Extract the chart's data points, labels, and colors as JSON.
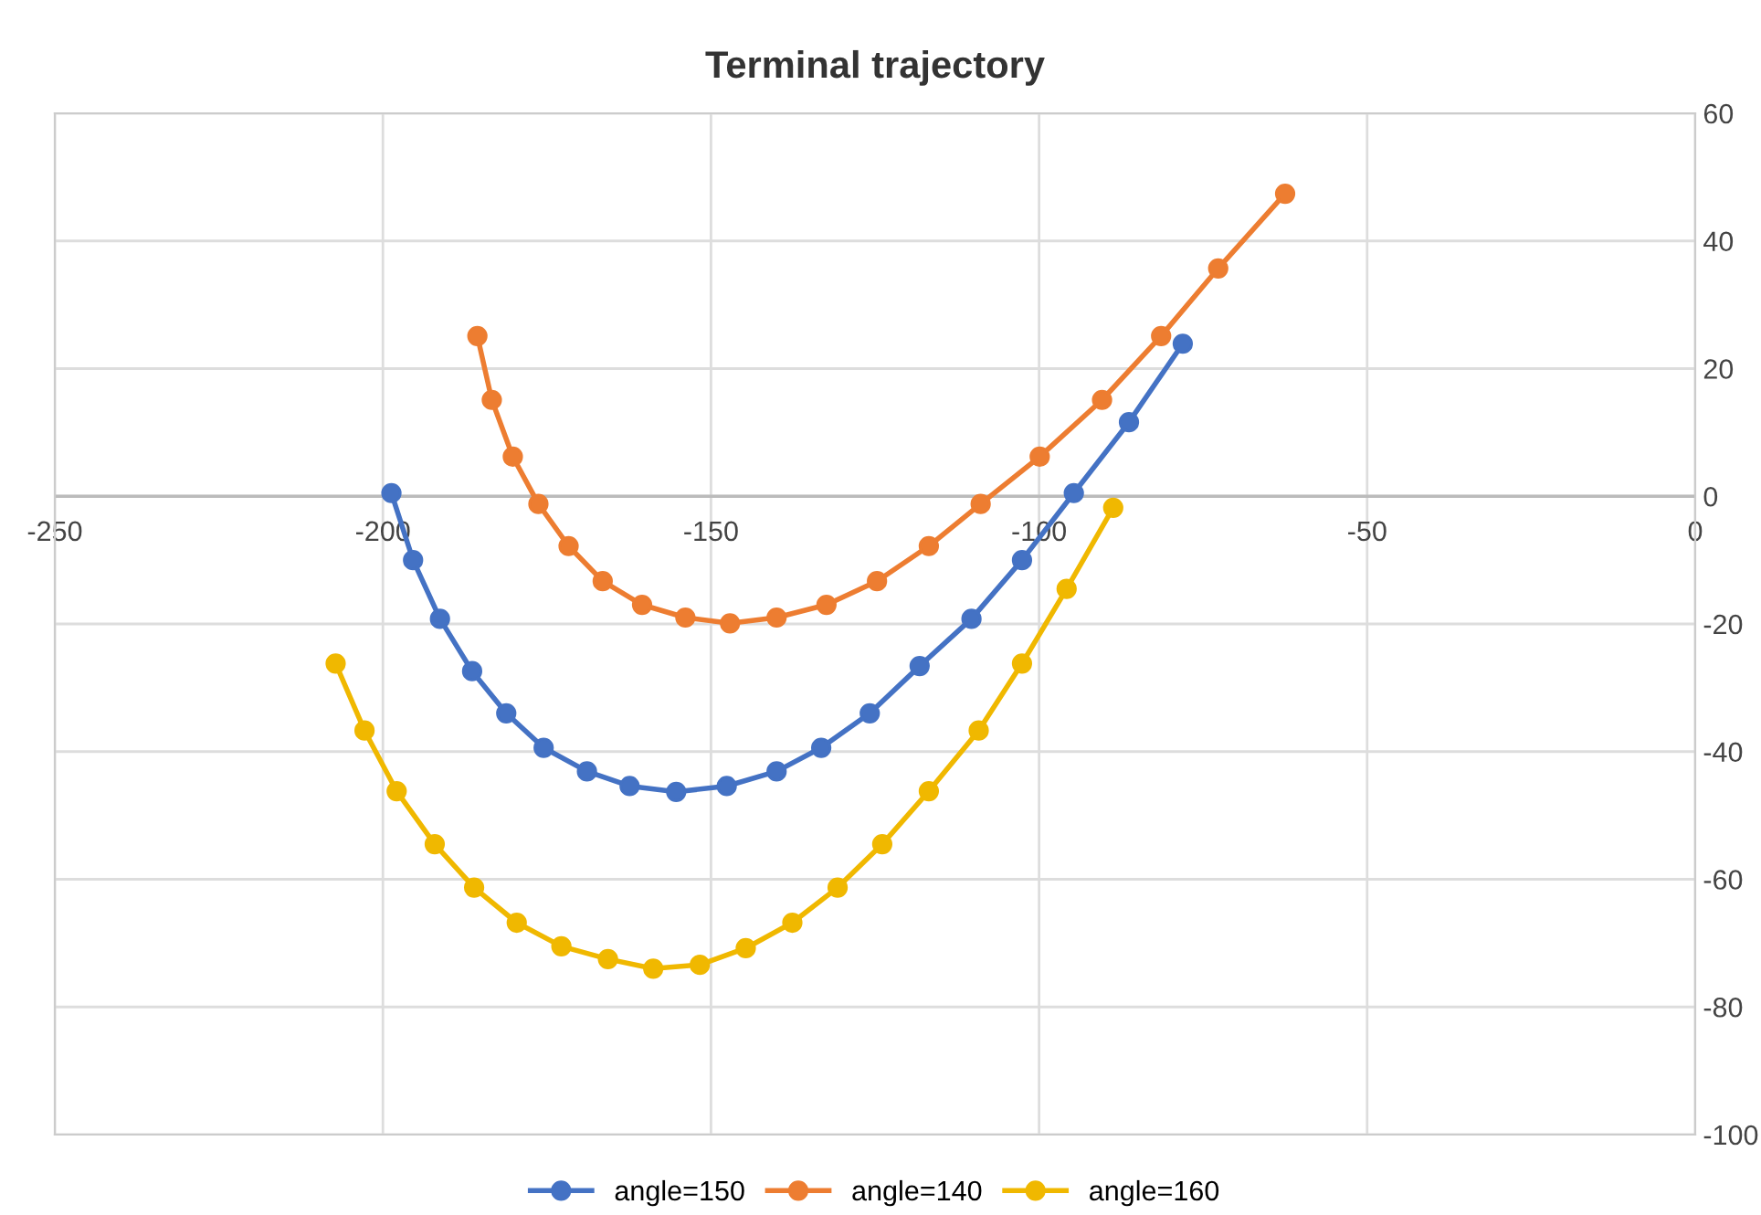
{
  "chart_data": {
    "type": "line",
    "title": "Terminal trajectory",
    "xlim": [
      -250,
      0
    ],
    "ylim": [
      -100,
      60
    ],
    "xticks": [
      -250,
      -200,
      -150,
      -100,
      -50,
      0
    ],
    "yticks": [
      -100,
      -80,
      -60,
      -40,
      -20,
      0,
      20,
      40,
      60
    ],
    "grid": true,
    "legend": "bottom",
    "marker": "circle",
    "line_style": "solid",
    "series": [
      {
        "name": "angle=150",
        "color": "#4472c4",
        "x": [
          -198.7,
          -195.4,
          -191.3,
          -186.4,
          -181.2,
          -175.5,
          -168.9,
          -162.4,
          -155.3,
          -147.6,
          -140,
          -133.2,
          -125.8,
          -118.2,
          -110.3,
          -102.6,
          -94.7,
          -86.3,
          -78.1
        ],
        "values": [
          0.5,
          -10,
          -19.2,
          -27.4,
          -34,
          -39.4,
          -43.1,
          -45.4,
          -46.3,
          -45.4,
          -43.1,
          -39.4,
          -34,
          -26.6,
          -19.2,
          -10,
          0.5,
          11.6,
          23.9
        ]
      },
      {
        "name": "angle=140",
        "color": "#ed7d31",
        "x": [
          -185.6,
          -183.4,
          -180.2,
          -176.3,
          -171.7,
          -166.5,
          -160.5,
          -153.9,
          -147.1,
          -140,
          -132.4,
          -124.7,
          -116.8,
          -108.9,
          -99.9,
          -90.4,
          -81.4,
          -72.7,
          -62.5
        ],
        "values": [
          25.1,
          15.1,
          6.2,
          -1.2,
          -7.8,
          -13.3,
          -17,
          -19,
          -19.9,
          -19,
          -17,
          -13.3,
          -7.8,
          -1.2,
          6.2,
          15.1,
          25.1,
          35.7,
          47.4
        ]
      },
      {
        "name": "angle=160",
        "color": "#f0b800",
        "x": [
          -207.2,
          -202.8,
          -197.9,
          -192.1,
          -186.1,
          -179.6,
          -172.8,
          -165.7,
          -158.8,
          -151.7,
          -144.7,
          -137.6,
          -130.7,
          -123.9,
          -116.8,
          -109.2,
          -102.6,
          -95.8,
          -88.7
        ],
        "values": [
          -26.2,
          -36.7,
          -46.2,
          -54.5,
          -61.3,
          -66.8,
          -70.5,
          -72.5,
          -74,
          -73.4,
          -70.8,
          -66.8,
          -61.3,
          -54.5,
          -46.2,
          -36.7,
          -26.2,
          -14.5,
          -1.8
        ]
      }
    ]
  }
}
